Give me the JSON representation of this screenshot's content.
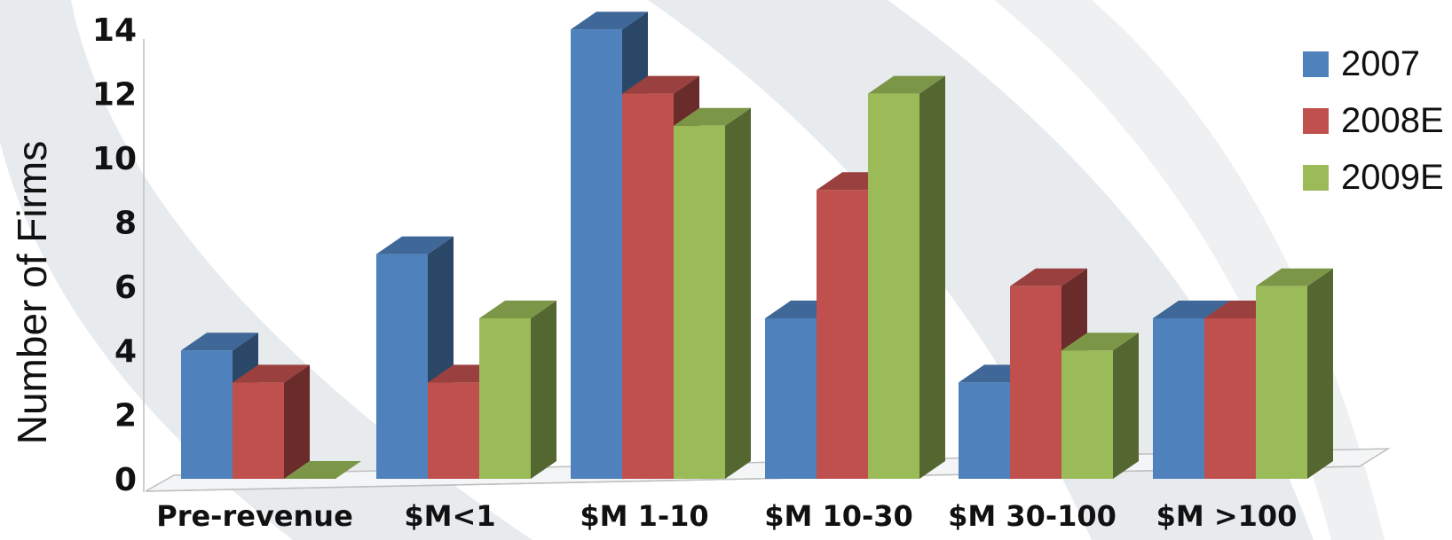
{
  "chart_data": {
    "type": "bar",
    "title": "",
    "xlabel": "",
    "ylabel": "Number of Firms",
    "ylim": [
      0,
      14
    ],
    "yticks": [
      "0",
      "2",
      "4",
      "6",
      "8",
      "10",
      "12",
      "14"
    ],
    "categories": [
      "Pre-revenue",
      "$M<1",
      "$M 1-10",
      "$M 10-30",
      "$M 30-100",
      "$M >100"
    ],
    "series": [
      {
        "name": "2007",
        "color": "#4F81BD",
        "values": [
          4,
          7,
          14,
          5,
          3,
          5
        ]
      },
      {
        "name": "2008E",
        "color": "#C0504D",
        "values": [
          3,
          3,
          12,
          9,
          6,
          5
        ]
      },
      {
        "name": "2009E",
        "color": "#9BBB59",
        "values": [
          0,
          5,
          11,
          12,
          4,
          6
        ]
      }
    ],
    "legend_position": "top-right",
    "grid": false,
    "style": "3d-clustered-column"
  }
}
